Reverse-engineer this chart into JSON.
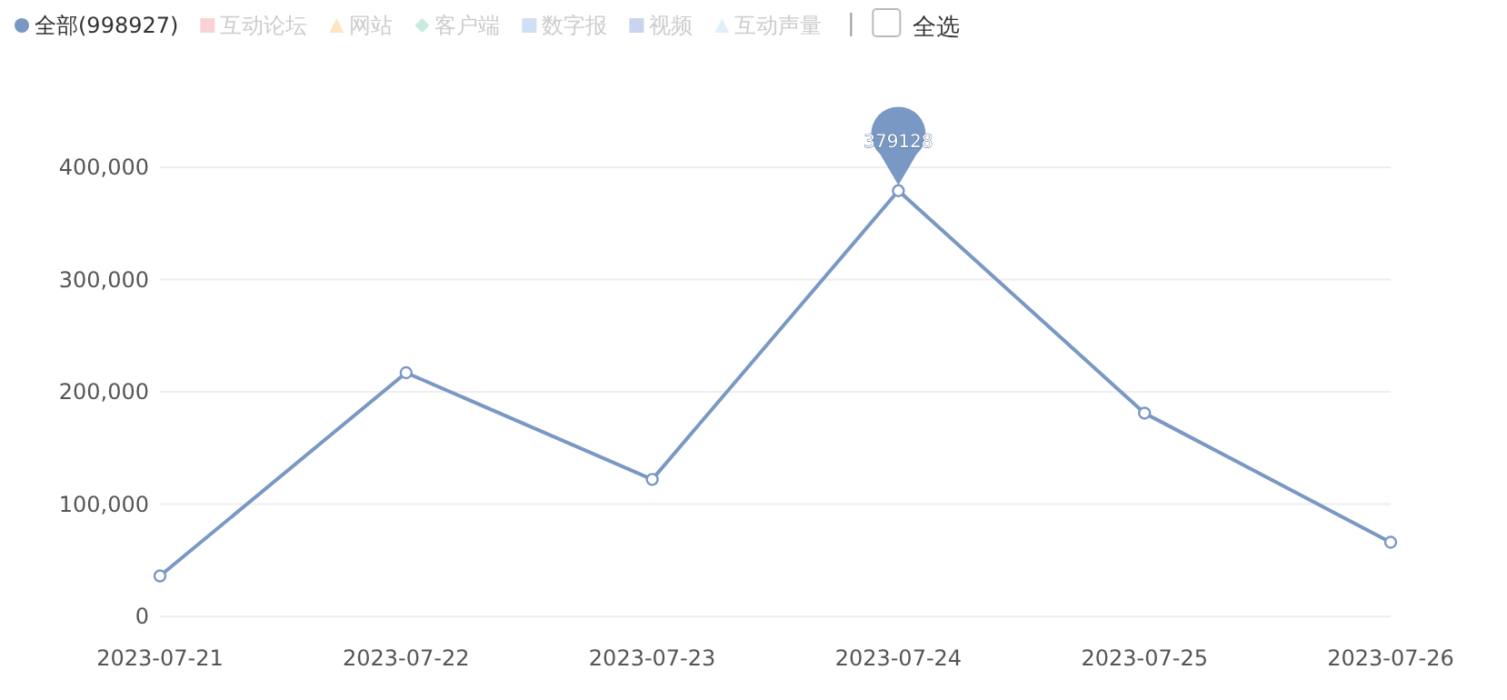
{
  "chart_data": {
    "type": "line",
    "categories": [
      "2023-07-21",
      "2023-07-22",
      "2023-07-23",
      "2023-07-24",
      "2023-07-25",
      "2023-07-26"
    ],
    "series": [
      {
        "name": "全部(998927)",
        "color": "#7a98c4",
        "marker": "circle",
        "values": [
          36000,
          217000,
          122000,
          379128,
          181000,
          66000
        ],
        "value_labels": [
          null,
          null,
          null,
          "379128",
          null,
          null
        ]
      },
      {
        "name": "互动论坛",
        "color": "#f9d3d3",
        "marker": "square",
        "values": [
          null,
          null,
          null,
          null,
          null,
          null
        ]
      },
      {
        "name": "网站",
        "color": "#fde6bf",
        "marker": "triangle",
        "values": [
          null,
          null,
          null,
          null,
          null,
          null
        ]
      },
      {
        "name": "客户端",
        "color": "#c5ecdc",
        "marker": "diamond",
        "values": [
          null,
          null,
          null,
          null,
          null,
          null
        ]
      },
      {
        "name": "数字报",
        "color": "#cfe0f5",
        "marker": "square",
        "values": [
          null,
          null,
          null,
          null,
          null,
          null
        ]
      },
      {
        "name": "视频",
        "color": "#c8d4f0",
        "marker": "square",
        "values": [
          null,
          null,
          null,
          null,
          null,
          null
        ]
      },
      {
        "name": "互动声量",
        "color": "#e0f0f8",
        "marker": "triangle",
        "values": [
          null,
          null,
          null,
          null,
          null,
          null
        ]
      }
    ],
    "ylim": [
      0,
      400000
    ],
    "yticks": [
      {
        "value": 0,
        "label": "0"
      },
      {
        "value": 100000,
        "label": "100,000"
      },
      {
        "value": 200000,
        "label": "200,000"
      },
      {
        "value": 300000,
        "label": "300,000"
      },
      {
        "value": 400000,
        "label": "400,000"
      }
    ],
    "grid": "y",
    "legend": "top left",
    "line_style": "solid",
    "annotations": [
      "全选"
    ]
  }
}
